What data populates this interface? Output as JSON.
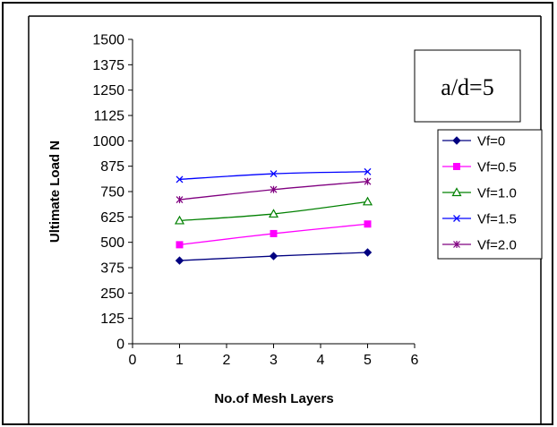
{
  "chart_data": {
    "type": "line",
    "title": "",
    "xlabel": "No.of Mesh Layers",
    "ylabel": "Ultimate Load  N",
    "xlim": [
      0,
      6
    ],
    "ylim": [
      0,
      1500
    ],
    "xticks": [
      0,
      1,
      2,
      3,
      4,
      5,
      6
    ],
    "yticks": [
      0,
      125,
      250,
      375,
      500,
      625,
      750,
      875,
      1000,
      1125,
      1250,
      1375,
      1500
    ],
    "grid": false,
    "legend_position": "right",
    "annotation": "a/d=5",
    "x": [
      1,
      3,
      5
    ],
    "series": [
      {
        "name": "Vf=0",
        "values": [
          410,
          432,
          450
        ],
        "color": "#000080",
        "marker": "diamond"
      },
      {
        "name": "Vf=0.5",
        "values": [
          488,
          543,
          590
        ],
        "color": "#ff00ff",
        "marker": "square"
      },
      {
        "name": "Vf=1.0",
        "values": [
          607,
          640,
          700
        ],
        "color": "#008000",
        "marker": "triangle"
      },
      {
        "name": "Vf=1.5",
        "values": [
          810,
          838,
          848
        ],
        "color": "#0000ff",
        "marker": "x"
      },
      {
        "name": "Vf=2.0",
        "values": [
          710,
          760,
          800
        ],
        "color": "#800080",
        "marker": "asterisk"
      }
    ]
  }
}
